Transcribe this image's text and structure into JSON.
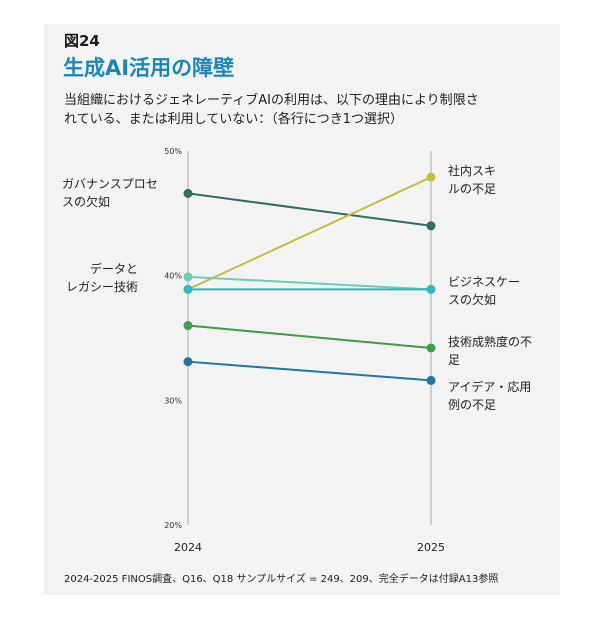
{
  "figure": {
    "label": "図24",
    "title": "生成AI活用の障壁",
    "subtitle_lines": [
      "当組織におけるジェネレーティブAIの利用は、以下の理由により制限さ",
      "れている、または利用していない：（各行につき1つ選択）"
    ],
    "footnote": "2024-2025 FINOS調査、Q16、Q18 サンプルサイズ = 249、209、完全データは付録A13参照"
  },
  "chart_data": {
    "type": "line",
    "title": "生成AI活用の障壁",
    "x": [
      "2024",
      "2025"
    ],
    "y_ticks": [
      "50%",
      "40%",
      "30%",
      "20%"
    ],
    "ylim": [
      20,
      50
    ],
    "series": [
      {
        "name": "ガバナンスプロセスの欠如",
        "label_lines": [
          "ガバナンスプロセ",
          "スの欠如"
        ],
        "values": [
          46.6,
          44.0
        ],
        "color": "#2e6e62"
      },
      {
        "name": "社内スキルの不足",
        "label_lines": [
          "社内スキ",
          "ルの不足"
        ],
        "values": [
          38.9,
          47.9
        ],
        "color": "#c8bc3a"
      },
      {
        "name": "データとレガシー技術",
        "label_lines": [
          "データと",
          "レガシー技術"
        ],
        "values": [
          39.9,
          38.9
        ],
        "color": "#6fcab6"
      },
      {
        "name": "ビジネスケースの欠如",
        "label_lines": [
          "ビジネスケー",
          "スの欠如"
        ],
        "values": [
          38.9,
          38.9
        ],
        "color": "#2fb6cc"
      },
      {
        "name": "技術成熟度の不足",
        "label_lines": [
          "技術成熟度の不",
          "足"
        ],
        "values": [
          36.0,
          34.2
        ],
        "color": "#3aa043"
      },
      {
        "name": "アイデア・応用例の不足",
        "label_lines": [
          "アイデア・応用",
          "例の不足"
        ],
        "values": [
          33.1,
          31.6
        ],
        "color": "#1b78aa"
      }
    ]
  }
}
